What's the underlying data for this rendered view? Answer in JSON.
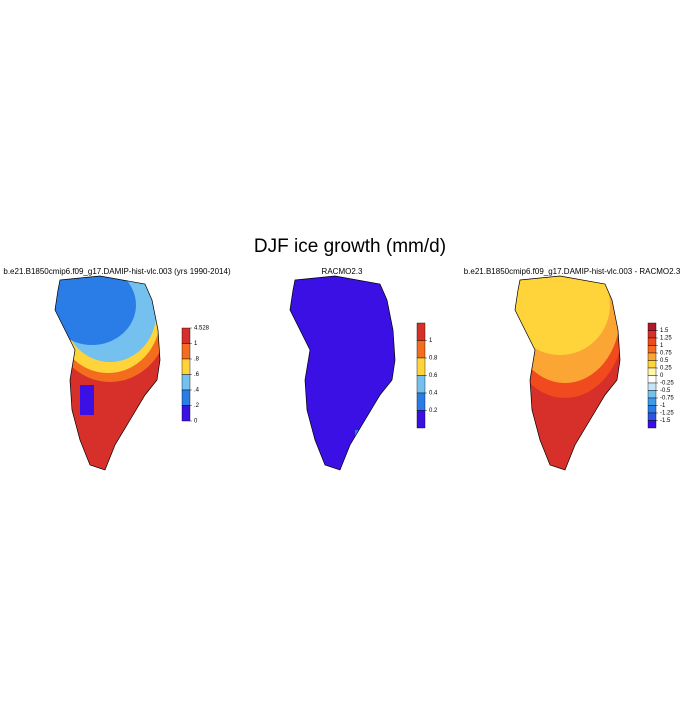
{
  "title": "DJF ice growth (mm/d)",
  "panels": [
    {
      "title": "b.e21.B1850cmip6.f09_g17.DAMIP-hist-vlc.003 (yrs 1990-2014)",
      "colorbar": {
        "labels": [
          "4.528",
          "1",
          ".8",
          ".6",
          ".4",
          ".2",
          "0"
        ],
        "colors": [
          "#d7302a",
          "#f46d1e",
          "#fed43a",
          "#74c0ef",
          "#2a7de6",
          "#3a10e5"
        ]
      }
    },
    {
      "title": "RACMO2.3",
      "colorbar": {
        "labels": [
          "1",
          "0.8",
          "0.6",
          "0.4",
          "0.2"
        ],
        "colors": [
          "#d7302a",
          "#f46d1e",
          "#fed43a",
          "#74c0ef",
          "#2a7de6",
          "#3a10e5"
        ]
      }
    },
    {
      "title": "b.e21.B1850cmip6.f09_g17.DAMIP-hist-vlc.003 - RACMO2.3",
      "colorbar": {
        "labels": [
          "1.5",
          "1.25",
          "1",
          "0.75",
          "0.5",
          "0.25",
          "0",
          "-0.25",
          "-0.5",
          "-0.75",
          "-1",
          "-1.25",
          "-1.5"
        ],
        "colors": [
          "#b2182b",
          "#d7302a",
          "#f04a1e",
          "#f46d1e",
          "#fba535",
          "#fed43a",
          "#fff6a8",
          "#ffffff",
          "#c6e4f7",
          "#74c0ef",
          "#3f9ae8",
          "#2a7de6",
          "#2f55e2",
          "#3a10e5"
        ]
      }
    }
  ]
}
